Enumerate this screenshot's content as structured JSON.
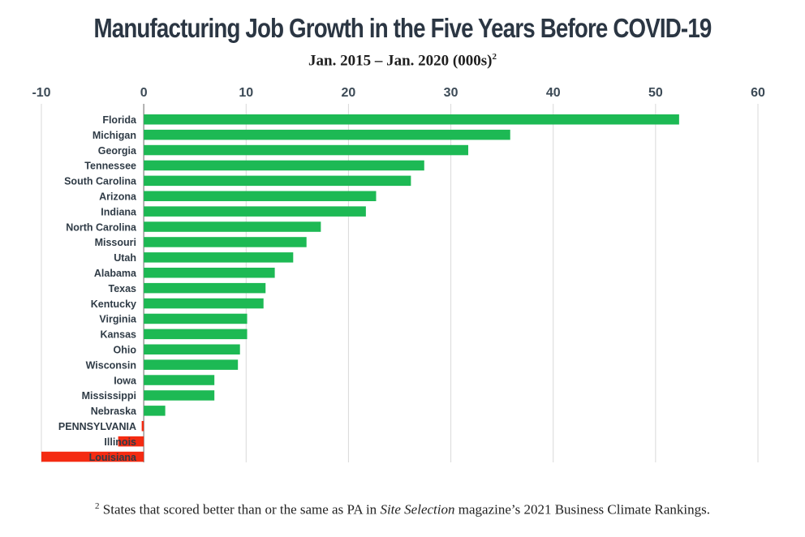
{
  "header": {
    "title": "Manufacturing Job Growth in the Five Years Before COVID-19",
    "subtitle": "Jan. 2015 – Jan. 2020 (000s)",
    "subtitle_note_marker": "2"
  },
  "footnote": {
    "marker": "2",
    "text_before": "States that scored better than or the same as PA in ",
    "publication": "Site Selection",
    "text_after": " magazine’s 2021 Business Climate Rankings."
  },
  "colors": {
    "positive": "#1db954",
    "negative": "#f42b12",
    "grid": "#d9d9d9",
    "axis": "#9a9a9a",
    "tick_text": "#3c4a56",
    "label_text": "#2f3b46"
  },
  "chart_data": {
    "type": "bar",
    "orientation": "horizontal",
    "title": "Manufacturing Job Growth in the Five Years Before COVID-19",
    "subtitle": "Jan. 2015 – Jan. 2020 (000s)",
    "xlim": [
      -10,
      60
    ],
    "ticks": [
      -10,
      0,
      10,
      20,
      30,
      40,
      50,
      60
    ],
    "tick_labels": [
      "-10",
      "0",
      "10",
      "20",
      "30",
      "40",
      "50",
      "60"
    ],
    "axis_position": "top",
    "grid": true,
    "categories": [
      "Florida",
      "Michigan",
      "Georgia",
      "Tennessee",
      "South Carolina",
      "Arizona",
      "Indiana",
      "North Carolina",
      "Missouri",
      "Utah",
      "Alabama",
      "Texas",
      "Kentucky",
      "Virginia",
      "Kansas",
      "Ohio",
      "Wisconsin",
      "Iowa",
      "Mississippi",
      "Nebraska",
      "PENNSYLVANIA",
      "Illinois",
      "Louisiana"
    ],
    "values": [
      52.3,
      35.8,
      31.7,
      27.4,
      26.1,
      22.7,
      21.7,
      17.3,
      15.9,
      14.6,
      12.8,
      11.9,
      11.7,
      10.1,
      10.1,
      9.4,
      9.2,
      6.9,
      6.9,
      2.1,
      -0.2,
      -2.5,
      -10.0
    ]
  }
}
